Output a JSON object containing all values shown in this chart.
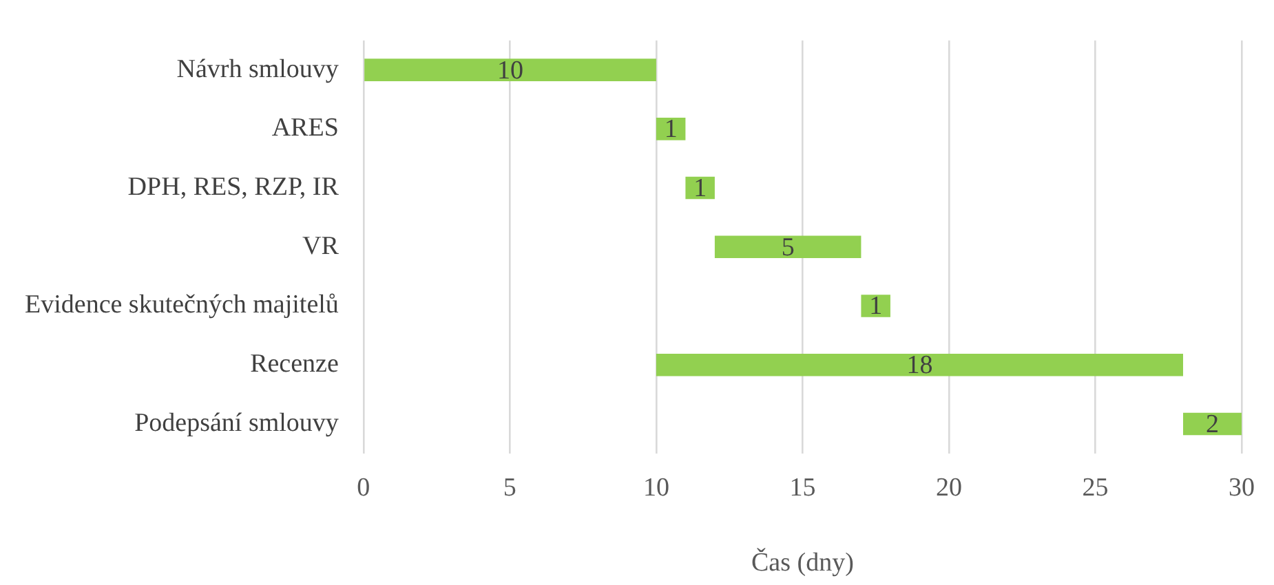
{
  "chart_data": {
    "type": "bar",
    "orientation": "horizontal",
    "xlabel": "Čas (dny)",
    "categories": [
      "Návrh smlouvy",
      "ARES",
      "DPH, RES, RZP, IR",
      "VR",
      "Evidence skutečných majitelů",
      "Recenze",
      "Podepsání smlouvy"
    ],
    "base": [
      0,
      10,
      11,
      12,
      17,
      10,
      28
    ],
    "values": [
      10,
      1,
      1,
      5,
      1,
      18,
      2
    ],
    "color": "#92d050",
    "data_labels": true,
    "xlim": [
      0,
      30
    ],
    "xticks": [
      0,
      5,
      10,
      15,
      20,
      25,
      30
    ],
    "grid": "x",
    "legend": false
  }
}
